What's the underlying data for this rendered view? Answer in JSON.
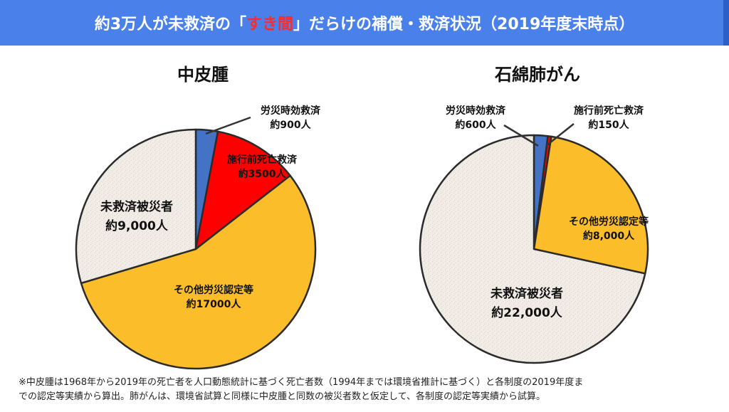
{
  "banner": {
    "prefix": "約3万人が未救済の「",
    "highlight": "すき間",
    "suffix": "」だらけの補償・救済状況（2019年度末時点）"
  },
  "colors": {
    "banner_bg": "#4a80ea",
    "highlight": "#ff2a2a",
    "jiko": "#4472c4",
    "sekou": "#ff0000",
    "sonota": "#fbbd2a",
    "mikyusai": "#f1ece6"
  },
  "chart_data": [
    {
      "type": "pie",
      "title": "中皮腫",
      "slices": [
        {
          "key": "jiko",
          "label": "労災時効救済",
          "value_text": "約900人",
          "value": 900,
          "color": "#4472c4"
        },
        {
          "key": "sekou",
          "label": "施行前死亡救済",
          "value_text": "約3500人",
          "value": 3500,
          "color": "#ff0000"
        },
        {
          "key": "sonota",
          "label": "その他労災認定等",
          "value_text": "約17000人",
          "value": 17000,
          "color": "#fbbd2a"
        },
        {
          "key": "mikyusai",
          "label": "未救済被災者",
          "value_text": "約9,000人",
          "value": 9000,
          "color": "#f1ece6"
        }
      ]
    },
    {
      "type": "pie",
      "title": "石綿肺がん",
      "slices": [
        {
          "key": "jiko",
          "label": "労災時効救済",
          "value_text": "約600人",
          "value": 600,
          "color": "#4472c4"
        },
        {
          "key": "sekou",
          "label": "施行前死亡救済",
          "value_text": "約150人",
          "value": 150,
          "color": "#ff0000"
        },
        {
          "key": "sonota",
          "label": "その他労災認定等",
          "value_text": "約8,000人",
          "value": 8000,
          "color": "#fbbd2a"
        },
        {
          "key": "mikyusai",
          "label": "未救済被災者",
          "value_text": "約22,000人",
          "value": 22000,
          "color": "#f1ece6"
        }
      ]
    }
  ],
  "footnote": {
    "line1": "※中皮腫は1968年から2019年の死亡者を人口動態統計に基づく死亡者数（1994年までは環境省推計に基づく）と各制度の2019年度ま",
    "line2": "での認定等実績から算出。肺がんは、環境省試算と同様に中皮腫と同数の被災者数と仮定して、各制度の認定等実績から試算。"
  }
}
